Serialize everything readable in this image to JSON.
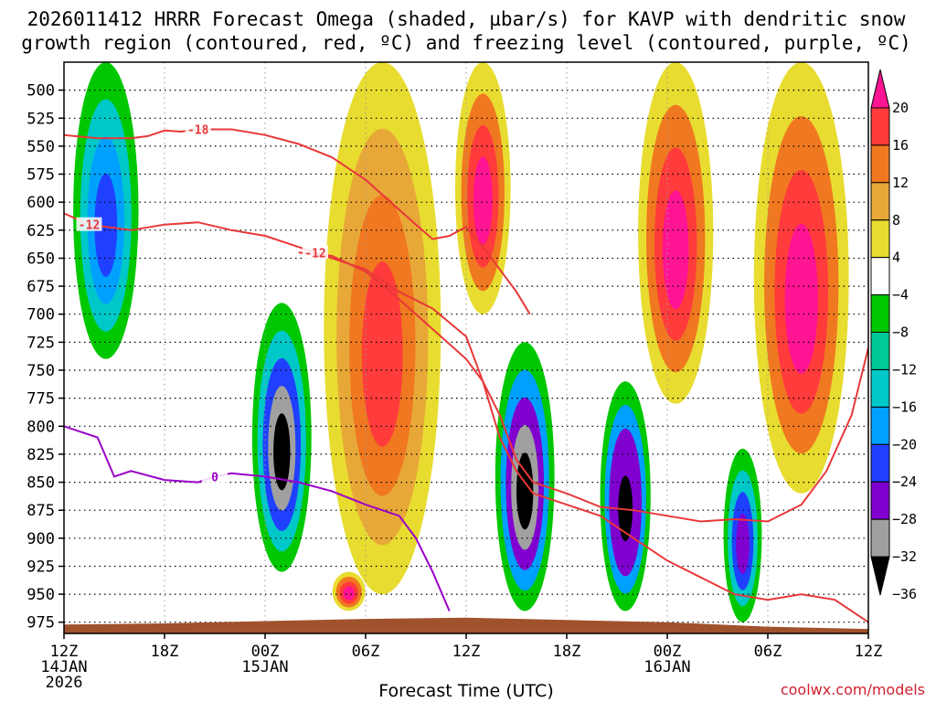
{
  "chart_data": {
    "type": "heatmap",
    "title_line1": "2026011412 HRRR Forecast Omega (shaded, µbar/s) for KAVP with dendritic snow",
    "title_line2": "growth region (contoured, red, ºC) and freezing level (contoured, purple, ºC)",
    "xlabel": "Forecast Time (UTC)",
    "credit": "coolwx.com/models",
    "x_range_hours": [
      0,
      48
    ],
    "y_range_mb": [
      475,
      985
    ],
    "x_ticks": [
      {
        "hour": 0,
        "label": "12Z",
        "sub": "14JAN",
        "sub2": "2026"
      },
      {
        "hour": 6,
        "label": "18Z"
      },
      {
        "hour": 12,
        "label": "00Z",
        "sub": "15JAN"
      },
      {
        "hour": 18,
        "label": "06Z"
      },
      {
        "hour": 24,
        "label": "12Z"
      },
      {
        "hour": 30,
        "label": "18Z"
      },
      {
        "hour": 36,
        "label": "00Z",
        "sub": "16JAN"
      },
      {
        "hour": 42,
        "label": "06Z"
      },
      {
        "hour": 48,
        "label": "12Z"
      }
    ],
    "y_ticks": [
      500,
      525,
      550,
      575,
      600,
      625,
      650,
      675,
      700,
      725,
      750,
      775,
      800,
      825,
      850,
      875,
      900,
      925,
      950,
      975
    ],
    "colorbar": {
      "labels": [
        "20",
        "16",
        "12",
        "8",
        "4",
        "−4",
        "−8",
        "−12",
        "−16",
        "−20",
        "−24",
        "−28",
        "−32",
        "−36"
      ],
      "colors": [
        "#ff1493",
        "#ff3b3b",
        "#f07820",
        "#e8a838",
        "#e8dc30",
        "#ffffff",
        "#00c800",
        "#00c896",
        "#00c8c8",
        "#00a0ff",
        "#2040ff",
        "#8000d0",
        "#a0a0a0",
        "#000000"
      ]
    },
    "omega_regions": [
      {
        "hour": 2.5,
        "p_top": 475,
        "p_bot": 740,
        "values": [
          -6,
          -14,
          -18,
          -22
        ]
      },
      {
        "hour": 13.0,
        "p_top": 690,
        "p_bot": 930,
        "values": [
          -6,
          -14,
          -22,
          -32,
          -38
        ]
      },
      {
        "hour": 17.0,
        "p_top": 930,
        "p_bot": 965,
        "values": [
          6,
          12,
          16,
          22
        ]
      },
      {
        "hour": 27.5,
        "p_top": 725,
        "p_bot": 965,
        "values": [
          -6,
          -16,
          -28,
          -34,
          -40
        ]
      },
      {
        "hour": 33.5,
        "p_top": 760,
        "p_bot": 965,
        "values": [
          -6,
          -16,
          -24,
          -30,
          -36
        ]
      },
      {
        "hour": 40.5,
        "p_top": 820,
        "p_bot": 975,
        "values": [
          -6,
          -14,
          -22,
          -28
        ]
      },
      {
        "hour": 19.0,
        "p_top": 475,
        "p_bot": 950,
        "values": [
          6,
          10,
          14,
          18
        ]
      },
      {
        "hour": 25.0,
        "p_top": 475,
        "p_bot": 700,
        "values": [
          6,
          12,
          16,
          20
        ]
      },
      {
        "hour": 36.5,
        "p_top": 475,
        "p_bot": 780,
        "values": [
          6,
          12,
          18,
          24
        ]
      },
      {
        "hour": 44.0,
        "p_top": 475,
        "p_bot": 860,
        "values": [
          6,
          12,
          18,
          24
        ]
      }
    ],
    "contours": [
      {
        "label": "-18",
        "color": "#e83838",
        "hour": 8.0,
        "p": 535,
        "points": [
          [
            0,
            540
          ],
          [
            2,
            543
          ],
          [
            4,
            543
          ],
          [
            5,
            541
          ],
          [
            6,
            536
          ],
          [
            7,
            537
          ],
          [
            8,
            535
          ],
          [
            10,
            535
          ],
          [
            12,
            540
          ],
          [
            14,
            548
          ],
          [
            16,
            560
          ],
          [
            18,
            580
          ],
          [
            19.5,
            600
          ],
          [
            21,
            620
          ],
          [
            22,
            633
          ],
          [
            23,
            630
          ],
          [
            24,
            622
          ],
          [
            25,
            640
          ],
          [
            26,
            660
          ],
          [
            27,
            680
          ],
          [
            27.8,
            700
          ]
        ]
      },
      {
        "label": "-12",
        "color": "#e83838",
        "hour": 1.5,
        "p": 620,
        "points": [
          [
            0,
            610
          ],
          [
            1.5,
            620
          ],
          [
            4,
            625
          ],
          [
            6,
            620
          ],
          [
            8,
            618
          ],
          [
            10,
            625
          ],
          [
            12,
            630
          ],
          [
            14,
            640
          ],
          [
            16,
            650
          ],
          [
            18,
            660
          ],
          [
            20,
            680
          ],
          [
            22,
            695
          ],
          [
            24,
            720
          ],
          [
            25,
            760
          ],
          [
            26,
            810
          ],
          [
            27,
            840
          ],
          [
            28,
            860
          ],
          [
            30,
            870
          ],
          [
            32,
            880
          ],
          [
            34,
            900
          ],
          [
            36,
            920
          ],
          [
            38,
            935
          ],
          [
            40,
            950
          ],
          [
            42,
            955
          ],
          [
            44,
            950
          ],
          [
            46,
            955
          ],
          [
            48,
            975
          ]
        ]
      },
      {
        "label": "-12",
        "color": "#e83838",
        "hour": 15.0,
        "p": 645,
        "points": [
          [
            14,
            645
          ],
          [
            16,
            648
          ],
          [
            18,
            662
          ],
          [
            19.5,
            680
          ],
          [
            21,
            700
          ],
          [
            22.5,
            720
          ],
          [
            24,
            740
          ],
          [
            25,
            760
          ],
          [
            26,
            790
          ],
          [
            27,
            830
          ],
          [
            28,
            850
          ],
          [
            30,
            860
          ],
          [
            32,
            872
          ],
          [
            34,
            875
          ],
          [
            36,
            880
          ],
          [
            38,
            885
          ],
          [
            40,
            883
          ],
          [
            42,
            885
          ],
          [
            44,
            870
          ],
          [
            45.5,
            840
          ],
          [
            47,
            790
          ],
          [
            48,
            730
          ]
        ]
      },
      {
        "label": "0",
        "color": "#9a00c8",
        "hour": 9.0,
        "p": 845,
        "points": [
          [
            0,
            800
          ],
          [
            2,
            810
          ],
          [
            3,
            845
          ],
          [
            4,
            840
          ],
          [
            6,
            848
          ],
          [
            8,
            850
          ],
          [
            9,
            845
          ],
          [
            10,
            842
          ],
          [
            12,
            845
          ],
          [
            14,
            850
          ],
          [
            16,
            858
          ],
          [
            18,
            870
          ],
          [
            20,
            880
          ],
          [
            21,
            900
          ],
          [
            22,
            930
          ],
          [
            23,
            965
          ]
        ]
      }
    ],
    "terrain_color": "#a0522d"
  }
}
